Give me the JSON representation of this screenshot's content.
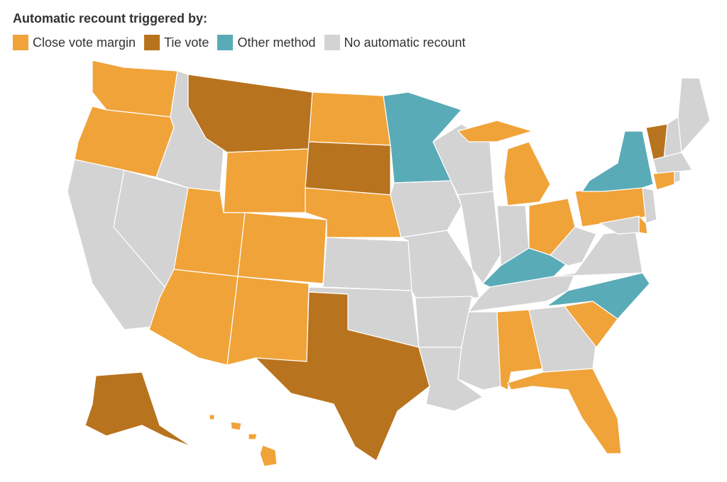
{
  "legend_title": "Automatic recount triggered by:",
  "legend": [
    {
      "label": "Close vote margin",
      "color": "#f0a339"
    },
    {
      "label": "Tie vote",
      "color": "#b8731e"
    },
    {
      "label": "Other method",
      "color": "#5aabb8"
    },
    {
      "label": "No automatic recount",
      "color": "#d3d3d3"
    }
  ]
}
